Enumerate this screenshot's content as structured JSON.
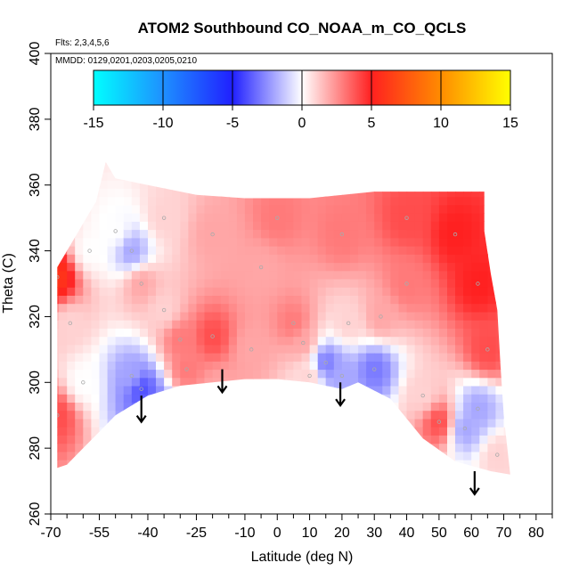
{
  "chart_data": {
    "type": "heatmap",
    "title": "ATOM2 Southbound CO_NOAA_m_CO_QCLS",
    "flights_note": "Flts: 2,3,4,5,6",
    "dates_note": "MMDD: 0129,0201,0203,0205,0210",
    "xlabel": "Latitude (deg N)",
    "ylabel": "Theta (C)",
    "xlim": [
      -70,
      85
    ],
    "ylim": [
      260,
      400
    ],
    "x_ticks": [
      -70,
      -55,
      -40,
      -25,
      -10,
      0,
      10,
      20,
      30,
      40,
      50,
      60,
      70,
      80
    ],
    "x_minor_ticks": [
      -65,
      -60,
      -50,
      -45,
      -35,
      -30,
      -20,
      -15,
      -5,
      5,
      15,
      25,
      35,
      45,
      55,
      65,
      75,
      85
    ],
    "y_ticks": [
      260,
      280,
      300,
      320,
      340,
      360,
      380,
      400
    ],
    "grid": false,
    "colorbar": {
      "ticks": [
        -15,
        -10,
        -5,
        0,
        5,
        10,
        15
      ],
      "range": [
        -15,
        15
      ],
      "stops": [
        {
          "value": -15,
          "color": "#00ffff"
        },
        {
          "value": -10,
          "color": "#1e90ff"
        },
        {
          "value": -5,
          "color": "#2020ff"
        },
        {
          "value": 0,
          "color": "#ffffff"
        },
        {
          "value": 5,
          "color": "#ff2020"
        },
        {
          "value": 10,
          "color": "#ff8c00"
        },
        {
          "value": 15,
          "color": "#ffff00"
        }
      ]
    },
    "domain_outline": [
      [
        -68,
        274
      ],
      [
        -68,
        335
      ],
      [
        -62,
        345
      ],
      [
        -56,
        355
      ],
      [
        -53,
        367
      ],
      [
        -50,
        362
      ],
      [
        -40,
        360
      ],
      [
        -25,
        357
      ],
      [
        -10,
        356
      ],
      [
        10,
        356
      ],
      [
        30,
        358
      ],
      [
        50,
        358
      ],
      [
        64,
        358
      ],
      [
        64,
        346
      ],
      [
        66,
        333
      ],
      [
        68,
        322
      ],
      [
        69,
        305
      ],
      [
        70,
        290
      ],
      [
        72,
        272
      ],
      [
        66,
        273
      ],
      [
        55,
        276
      ],
      [
        45,
        283
      ],
      [
        35,
        295
      ],
      [
        25,
        300
      ],
      [
        20,
        298
      ],
      [
        10,
        300
      ],
      [
        0,
        301
      ],
      [
        -10,
        301
      ],
      [
        -20,
        300
      ],
      [
        -30,
        299
      ],
      [
        -40,
        296
      ],
      [
        -50,
        290
      ],
      [
        -55,
        285
      ],
      [
        -60,
        280
      ],
      [
        -65,
        275
      ]
    ],
    "field_samples": [
      {
        "lat": -68,
        "theta": 332,
        "value": 6
      },
      {
        "lat": -68,
        "theta": 290,
        "value": 4
      },
      {
        "lat": -64,
        "theta": 318,
        "value": 1
      },
      {
        "lat": -50,
        "theta": 346,
        "value": 0
      },
      {
        "lat": -45,
        "theta": 340,
        "value": -2
      },
      {
        "lat": -42,
        "theta": 330,
        "value": 2
      },
      {
        "lat": -42,
        "theta": 298,
        "value": -4
      },
      {
        "lat": -38,
        "theta": 292,
        "value": -3
      },
      {
        "lat": -45,
        "theta": 302,
        "value": -2
      },
      {
        "lat": -35,
        "theta": 322,
        "value": 1
      },
      {
        "lat": -30,
        "theta": 313,
        "value": 3
      },
      {
        "lat": -20,
        "theta": 314,
        "value": 4
      },
      {
        "lat": -18,
        "theta": 298,
        "value": 2
      },
      {
        "lat": -5,
        "theta": 335,
        "value": 2
      },
      {
        "lat": -8,
        "theta": 310,
        "value": 2
      },
      {
        "lat": 5,
        "theta": 318,
        "value": 3
      },
      {
        "lat": 8,
        "theta": 312,
        "value": 2
      },
      {
        "lat": 10,
        "theta": 302,
        "value": 1
      },
      {
        "lat": 15,
        "theta": 306,
        "value": -3
      },
      {
        "lat": 20,
        "theta": 302,
        "value": -2
      },
      {
        "lat": 22,
        "theta": 318,
        "value": 1
      },
      {
        "lat": 30,
        "theta": 304,
        "value": -3
      },
      {
        "lat": 32,
        "theta": 320,
        "value": 2
      },
      {
        "lat": 40,
        "theta": 330,
        "value": 3
      },
      {
        "lat": 45,
        "theta": 296,
        "value": 1
      },
      {
        "lat": 50,
        "theta": 288,
        "value": 4
      },
      {
        "lat": 58,
        "theta": 286,
        "value": -2
      },
      {
        "lat": 62,
        "theta": 292,
        "value": -2
      },
      {
        "lat": 55,
        "theta": 345,
        "value": 5
      },
      {
        "lat": 62,
        "theta": 330,
        "value": 5
      },
      {
        "lat": 65,
        "theta": 310,
        "value": 4
      },
      {
        "lat": 40,
        "theta": 350,
        "value": 4
      },
      {
        "lat": 20,
        "theta": 345,
        "value": 3
      },
      {
        "lat": 0,
        "theta": 350,
        "value": 3
      },
      {
        "lat": -20,
        "theta": 345,
        "value": 2
      },
      {
        "lat": -35,
        "theta": 350,
        "value": 1
      },
      {
        "lat": -58,
        "theta": 340,
        "value": 0
      },
      {
        "lat": -60,
        "theta": 300,
        "value": 0
      },
      {
        "lat": -28,
        "theta": 304,
        "value": 3
      },
      {
        "lat": 68,
        "theta": 278,
        "value": 1
      }
    ],
    "arrows": [
      {
        "lat": -42,
        "theta_top": 296,
        "theta_tip": 288
      },
      {
        "lat": -17,
        "theta_top": 304,
        "theta_tip": 297
      },
      {
        "lat": 19.5,
        "theta_top": 300,
        "theta_tip": 293
      },
      {
        "lat": 61,
        "theta_top": 273,
        "theta_tip": 266
      }
    ]
  }
}
